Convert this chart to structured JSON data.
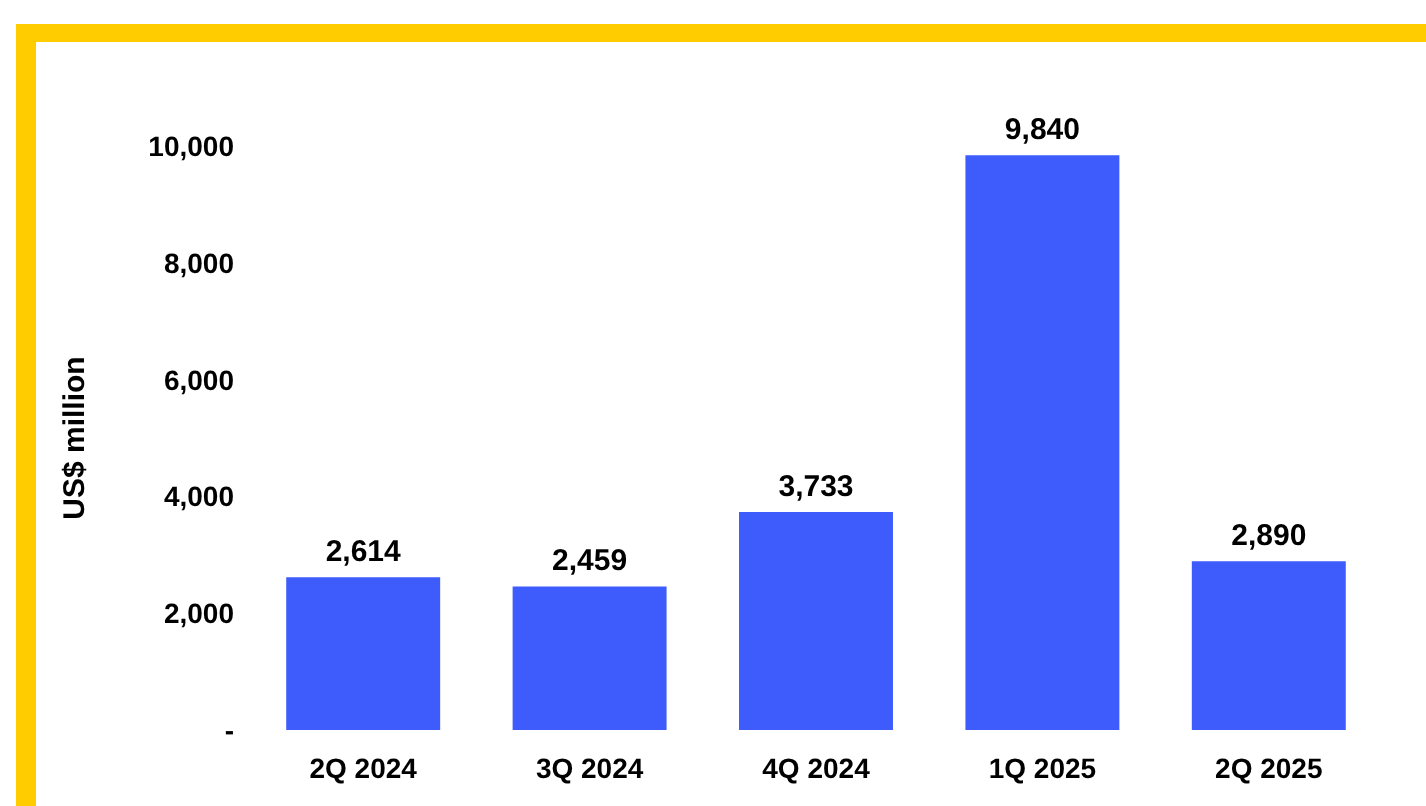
{
  "chart_data": {
    "type": "bar",
    "ylabel": "US$ million",
    "categories": [
      "2Q 2024",
      "3Q 2024",
      "4Q 2024",
      "1Q 2025",
      "2Q 2025"
    ],
    "values": [
      2614,
      2459,
      3733,
      9840,
      2890
    ],
    "color": "#3d5cfb",
    "value_labels": [
      "2,614",
      "2,459",
      "3,733",
      "9,840",
      "2,890"
    ],
    "ylim": [
      0,
      10000
    ],
    "yticks": [
      {
        "value": 0,
        "label": "-"
      },
      {
        "value": 2000,
        "label": "2,000"
      },
      {
        "value": 4000,
        "label": "4,000"
      },
      {
        "value": 6000,
        "label": "6,000"
      },
      {
        "value": 8000,
        "label": "8,000"
      },
      {
        "value": 10000,
        "label": "10,000"
      }
    ],
    "grid": false
  }
}
